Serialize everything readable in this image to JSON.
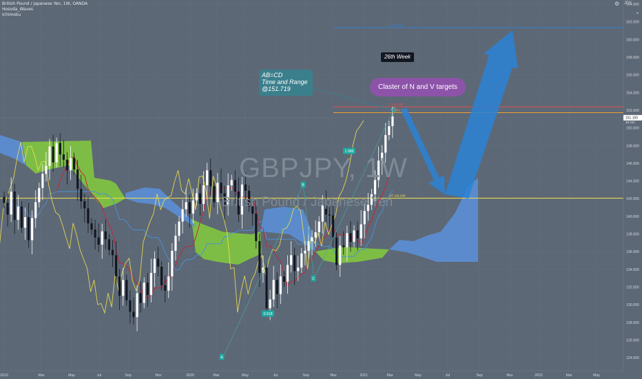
{
  "header": {
    "symbol_line": "British Pound / Japanese Yen, 1W, OANDA",
    "indicator1": "Hosoda_Waves",
    "indicator2": "Ichimoku"
  },
  "watermark": {
    "ticker": "GBPJPY, 1W",
    "name": "British Pound / Japanese Yen"
  },
  "annotations": {
    "week_label": "26th Week",
    "abcd_line1": "AB=CD",
    "abcd_line2": "Time and Range",
    "abcd_line3": "@151.719",
    "claster": "Claster of N and V targets",
    "ratio1": "1.085",
    "ratio2": "0.518",
    "point_a": "A",
    "point_b": "B",
    "point_c": "C",
    "nt_label": "NT 142.046",
    "top_target_label": "V 161.350",
    "red_level_label": "E 152.386",
    "orange_level_label": "151.719"
  },
  "price_axis": {
    "currency": "JPY",
    "ticks": [
      "164.000",
      "162.000",
      "160.000",
      "158.000",
      "156.000",
      "154.000",
      "152.000",
      "150.000",
      "148.000",
      "146.000",
      "144.000",
      "142.000",
      "140.000",
      "138.000",
      "136.000",
      "134.000",
      "132.000",
      "130.000",
      "128.000",
      "126.000",
      "124.000"
    ],
    "current_price": "151.150",
    "countdown": "3d 21h"
  },
  "time_axis": {
    "ticks": [
      "2019",
      "Mar",
      "May",
      "Jul",
      "Sep",
      "Nov",
      "2020",
      "Mar",
      "May",
      "Jul",
      "Sep",
      "Nov",
      "2021",
      "Mar",
      "May",
      "Jul",
      "Sep",
      "Nov",
      "2022",
      "Mar",
      "May"
    ]
  },
  "colors": {
    "background": "#5d6876",
    "cloud_bull": "#7fc242",
    "cloud_bear": "#5b8fd6",
    "tenkan": "#c0283a",
    "kijun": "#4a8fd4",
    "chikou": "#f3e34b",
    "target_line": "#2f7fd0",
    "red_level": "#e0504e",
    "orange_level": "#f0a233",
    "yellow_level": "#f3e34b",
    "arrow": "#2a83d6"
  },
  "chart_data": {
    "type": "candlestick",
    "ylim": [
      123,
      164
    ],
    "levels": [
      {
        "name": "V target",
        "value": 161.35
      },
      {
        "name": "E target",
        "value": 152.386
      },
      {
        "name": "AB=CD",
        "value": 151.719
      },
      {
        "name": "NT",
        "value": 142.046
      }
    ],
    "close_series": [
      141.5,
      140.2,
      142.8,
      139.6,
      141.1,
      138.7,
      139.9,
      137.3,
      139.8,
      141.6,
      143.2,
      144.8,
      145.7,
      147.9,
      146.1,
      148.3,
      147.0,
      146.4,
      145.2,
      146.6,
      145.3,
      143.1,
      141.7,
      140.9,
      139.2,
      138.5,
      137.6,
      136.8,
      138.3,
      137.4,
      136.2,
      135.6,
      133.2,
      131.0,
      132.8,
      130.5,
      129.2,
      128.6,
      131.3,
      130.2,
      132.5,
      131.1,
      133.6,
      135.2,
      134.3,
      132.2,
      131.6,
      133.2,
      136.1,
      137.8,
      139.4,
      140.8,
      141.6,
      140.3,
      141.8,
      142.6,
      141.4,
      143.5,
      145.2,
      143.4,
      141.6,
      143.8,
      142.6,
      141.2,
      143.5,
      144.1,
      142.8,
      140.2,
      143.6,
      142.9,
      141.1,
      140.3,
      137.2,
      133.6,
      134.2,
      129.6,
      130.6,
      132.8,
      131.2,
      133.2,
      132.6,
      134.5,
      135.6,
      133.8,
      134.2,
      135.8,
      136.1,
      137.2,
      137.6,
      138.2,
      139.4,
      141.3,
      140.2,
      140.1,
      137.6,
      134.5,
      136.7,
      136.5,
      138.1,
      137.1,
      138.4,
      137.5,
      139.1,
      140.6,
      141.3,
      142.5,
      144.1,
      146.3,
      147.2,
      149.2,
      150.2,
      151.3
    ]
  }
}
